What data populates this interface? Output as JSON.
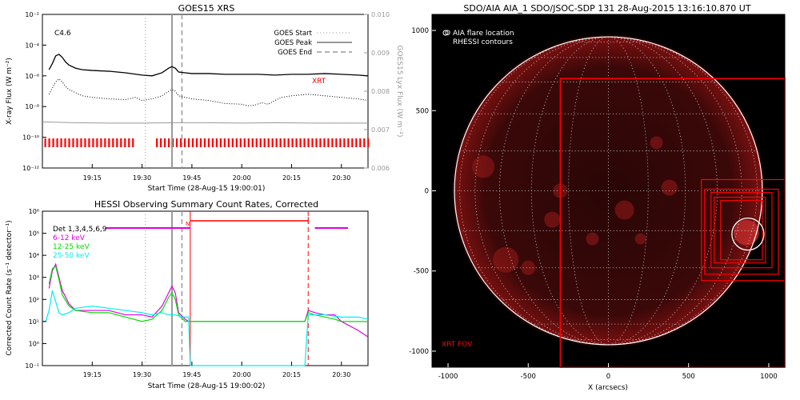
{
  "colors": {
    "red": "#ff0000",
    "magenta": "#e000e0",
    "green": "#00dd00",
    "cyan": "#00eeee",
    "grey": "#999999",
    "black": "#000000"
  },
  "chart_data": [
    {
      "id": "goes",
      "type": "line",
      "title": "GOES15 XRS",
      "xlabel": "Start Time (28-Aug-15 19:00:01)",
      "ylabel": "X-ray Flux (W m⁻²)",
      "y2label": "GOES15 Lyx Flux (W m⁻²)",
      "xlim_min": [
        0,
        40
      ],
      "xticks": [
        {
          "t": 15,
          "label": "19:15"
        },
        {
          "t": 30,
          "label": "19:30"
        },
        {
          "t": 45,
          "label": "19:45"
        },
        {
          "t": 60,
          "label": "20:00"
        },
        {
          "t": 75,
          "label": "20:15"
        },
        {
          "t": 90,
          "label": "20:30"
        }
      ],
      "ylog_range": [
        -12,
        -2
      ],
      "yticks": [
        {
          "e": -12,
          "label": "10⁻¹²"
        },
        {
          "e": -10,
          "label": "10⁻¹⁰"
        },
        {
          "e": -8,
          "label": "10⁻⁸"
        },
        {
          "e": -6,
          "label": "10⁻⁶"
        },
        {
          "e": -4,
          "label": "10⁻⁴"
        },
        {
          "e": -2,
          "label": "10⁻²"
        }
      ],
      "y2ticks": [
        {
          "v": 0.006,
          "label": "0.006"
        },
        {
          "v": 0.007,
          "label": "0.007"
        },
        {
          "v": 0.008,
          "label": "0.008"
        },
        {
          "v": 0.009,
          "label": "0.009"
        },
        {
          "v": 0.01,
          "label": "0.010"
        }
      ],
      "y2lim": [
        0.006,
        0.01
      ],
      "annotation": "C4.6",
      "xrt_label": "XRT",
      "legend": [
        {
          "name": "GOES Start",
          "style": "dotted"
        },
        {
          "name": "GOES Peak",
          "style": "solid"
        },
        {
          "name": "GOES End",
          "style": "dashed"
        }
      ],
      "goes_start_min": 31,
      "goes_peak_min": 39,
      "goes_end_min": 42,
      "series": [
        {
          "name": "long",
          "style": "solid",
          "t": [
            2,
            3,
            4,
            5,
            6,
            7,
            8,
            10,
            12,
            15,
            20,
            25,
            30,
            33,
            36,
            38,
            39,
            40,
            41,
            43,
            45,
            50,
            55,
            60,
            65,
            70,
            75,
            80,
            85,
            90,
            95,
            98
          ],
          "logy": [
            -5.6,
            -5.2,
            -4.7,
            -4.6,
            -4.8,
            -5.1,
            -5.3,
            -5.5,
            -5.6,
            -5.65,
            -5.7,
            -5.8,
            -5.95,
            -6.0,
            -5.8,
            -5.5,
            -5.4,
            -5.5,
            -5.75,
            -5.8,
            -5.85,
            -5.85,
            -5.9,
            -5.9,
            -5.9,
            -5.95,
            -5.9,
            -5.9,
            -5.85,
            -5.9,
            -5.95,
            -6.0
          ]
        },
        {
          "name": "short",
          "style": "dotted",
          "t": [
            2,
            3,
            4,
            5,
            6,
            7,
            8,
            10,
            12,
            15,
            20,
            25,
            28,
            30,
            33,
            36,
            38,
            39,
            40,
            41,
            43,
            45,
            50,
            55,
            60,
            62,
            64,
            66,
            68,
            70,
            72,
            75,
            80,
            85,
            90,
            95,
            98
          ],
          "logy": [
            -7.2,
            -6.8,
            -6.4,
            -6.2,
            -6.4,
            -6.7,
            -6.9,
            -7.1,
            -7.3,
            -7.4,
            -7.5,
            -7.55,
            -7.4,
            -7.6,
            -7.5,
            -7.3,
            -7.0,
            -6.9,
            -7.0,
            -7.3,
            -7.4,
            -7.5,
            -7.6,
            -7.8,
            -7.85,
            -7.95,
            -7.9,
            -7.75,
            -7.85,
            -7.6,
            -7.4,
            -7.3,
            -7.2,
            -7.3,
            -7.4,
            -7.5,
            -7.6
          ]
        },
        {
          "name": "lya",
          "style": "grey",
          "t": [
            0,
            10,
            20,
            30,
            40,
            50,
            60,
            70,
            80,
            90,
            98
          ],
          "y2": [
            0.0072,
            0.00718,
            0.00717,
            0.00717,
            0.00718,
            0.00718,
            0.00717,
            0.00718,
            0.00717,
            0.00717,
            0.00717
          ]
        }
      ]
    },
    {
      "id": "hessi",
      "type": "line",
      "title": "HESSI Observing Summary Count Rates, Corrected",
      "xlabel": "Start Time (28-Aug-15 19:00:02)",
      "ylabel": "Corrected Count Rate (s⁻¹ detector⁻¹)",
      "legend_title": "Det 1,3,4,5,6,9",
      "n_label": "N",
      "ylog_range": [
        -1,
        6
      ],
      "yticks": [
        {
          "e": -1,
          "label": "10⁻¹"
        },
        {
          "e": 0,
          "label": "10⁰"
        },
        {
          "e": 1,
          "label": "10¹"
        },
        {
          "e": 2,
          "label": "10²"
        },
        {
          "e": 3,
          "label": "10³"
        },
        {
          "e": 4,
          "label": "10⁴"
        },
        {
          "e": 5,
          "label": "10⁵"
        },
        {
          "e": 6,
          "label": "10⁶"
        }
      ],
      "xticks": [
        {
          "t": 15,
          "label": "19:15"
        },
        {
          "t": 30,
          "label": "19:30"
        },
        {
          "t": 45,
          "label": "19:45"
        },
        {
          "t": 60,
          "label": "20:00"
        },
        {
          "t": 75,
          "label": "20:15"
        },
        {
          "t": 90,
          "label": "20:30"
        }
      ],
      "goes_start_min": 31,
      "goes_peak_min": 39,
      "goes_end_min": 42,
      "night_start_min": 44.5,
      "night_end_min": 80,
      "series": [
        {
          "name": "6-12 keV",
          "color": "#e000e0",
          "t": [
            2,
            3,
            4,
            5,
            6,
            8,
            10,
            15,
            20,
            25,
            30,
            33,
            36,
            38,
            39,
            40,
            41,
            43,
            44,
            45,
            78,
            79,
            80,
            82,
            85,
            88,
            90,
            95,
            98
          ],
          "logy": [
            2.5,
            3.3,
            3.6,
            3.0,
            2.4,
            1.8,
            1.5,
            1.5,
            1.5,
            1.3,
            1.3,
            1.2,
            1.7,
            2.3,
            2.6,
            2.3,
            1.4,
            1.1,
            1.0,
            1.0,
            1.0,
            1.0,
            1.5,
            1.4,
            1.3,
            1.3,
            1.0,
            0.6,
            0.3
          ]
        },
        {
          "name": "12-25 keV",
          "color": "#00dd00",
          "t": [
            2,
            3,
            4,
            5,
            6,
            8,
            10,
            15,
            20,
            25,
            30,
            33,
            36,
            38,
            39,
            40,
            41,
            43,
            44,
            45,
            78,
            79,
            80,
            82,
            85,
            88,
            90,
            95,
            98
          ],
          "logy": [
            2.7,
            3.4,
            3.5,
            2.9,
            2.2,
            1.7,
            1.5,
            1.4,
            1.4,
            1.2,
            1.0,
            1.1,
            1.5,
            2.1,
            2.3,
            2.0,
            1.3,
            1.0,
            1.0,
            1.0,
            1.0,
            1.0,
            1.4,
            1.3,
            1.2,
            1.1,
            1.0,
            1.0,
            1.0
          ]
        },
        {
          "name": "25-50 keV",
          "color": "#00eeee",
          "t": [
            0,
            1,
            2,
            3,
            4,
            5,
            6,
            8,
            10,
            15,
            20,
            25,
            30,
            33,
            36,
            38,
            40,
            42,
            44,
            44.5,
            45,
            79,
            80,
            81,
            85,
            90,
            95,
            98
          ],
          "logy": [
            1.0,
            1.0,
            1.5,
            2.4,
            1.9,
            1.4,
            1.3,
            1.4,
            1.6,
            1.7,
            1.6,
            1.5,
            1.4,
            1.3,
            1.4,
            1.3,
            1.3,
            1.2,
            1.2,
            -1.0,
            -1.0,
            -1.0,
            1.3,
            1.3,
            1.3,
            1.2,
            1.2,
            1.1
          ]
        }
      ]
    },
    {
      "id": "aia",
      "type": "image",
      "title": "SDO/AIA AIA_1 SDO/JSOC-SDP 131 28-Aug-2015 13:16:10.870 UT",
      "xlabel": "X (arcsecs)",
      "xlim": [
        -1100,
        1100
      ],
      "ylim": [
        -1100,
        1100
      ],
      "ticks": [
        -1000,
        -500,
        0,
        500,
        1000
      ],
      "solar_radius": 960,
      "flare_location": [
        870,
        -270
      ],
      "legend": [
        "O AIA flare location",
        "RHESSI contours"
      ],
      "xrt_fov_label": "XRT FOV",
      "xrt_fov": [
        -300,
        -1100,
        1100,
        700
      ]
    }
  ]
}
